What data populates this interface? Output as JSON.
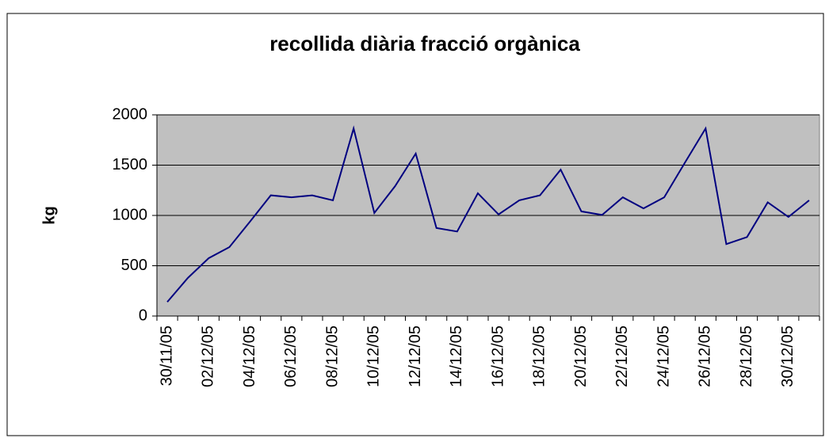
{
  "chart_data": {
    "type": "line",
    "title": "recollida diària fracció orgànica",
    "y_label": "kg",
    "categories": [
      "30/11/05",
      null,
      "02/12/05",
      null,
      "04/12/05",
      null,
      "06/12/05",
      null,
      "08/12/05",
      null,
      "10/12/05",
      null,
      "12/12/05",
      null,
      "14/12/05",
      null,
      "16/12/05",
      null,
      "18/12/05",
      null,
      "20/12/05",
      null,
      "22/12/05",
      null,
      "24/12/05",
      null,
      "26/12/05",
      null,
      "28/12/05",
      null,
      "30/12/05",
      null
    ],
    "series": [
      {
        "name": "kg",
        "color": "#000080",
        "values": [
          140,
          380,
          575,
          685,
          940,
          1200,
          1180,
          1200,
          1150,
          1865,
          1025,
          1290,
          1615,
          875,
          840,
          1220,
          1010,
          1150,
          1200,
          1455,
          1040,
          1005,
          1180,
          1070,
          1180,
          1525,
          1865,
          715,
          785,
          1130,
          985,
          1150
        ]
      }
    ],
    "ylim": [
      0,
      2000
    ],
    "yticks": [
      0,
      500,
      1000,
      1500,
      2000
    ],
    "grid": true,
    "plot_background": "#c0c0c0"
  }
}
